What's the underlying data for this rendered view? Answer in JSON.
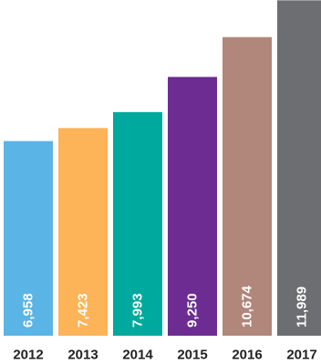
{
  "chart_data": {
    "type": "bar",
    "categories": [
      "2012",
      "2013",
      "2014",
      "2015",
      "2016",
      "2017"
    ],
    "values": [
      6958,
      7423,
      7993,
      9250,
      10674,
      11989
    ],
    "value_labels": [
      "6,958",
      "7,423",
      "7,993",
      "9,250",
      "10,674",
      "11,989"
    ],
    "colors": [
      "#5ab4e5",
      "#fdb357",
      "#00a99d",
      "#6c2c91",
      "#b0877a",
      "#6d6e71"
    ],
    "title": "",
    "xlabel": "",
    "ylabel": "",
    "ylim": [
      0,
      12000
    ],
    "grid": false,
    "legend": "none"
  }
}
